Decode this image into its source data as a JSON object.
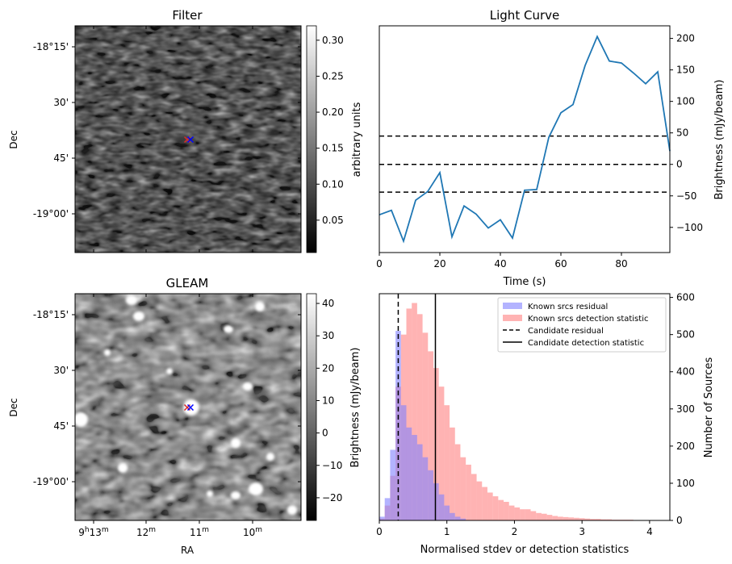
{
  "chart_data": [
    {
      "type": "heatmap",
      "title": "Filter",
      "xlabel": "",
      "ylabel": "Dec",
      "yticklabels": [
        "-18°15'",
        "30'",
        "45'",
        "-19°00'"
      ],
      "colorbar": {
        "label": "arbitrary units",
        "range": [
          0.005,
          0.32
        ],
        "ticks": [
          0.05,
          0.1,
          0.15,
          0.2,
          0.25,
          0.3
        ],
        "ticklabels": [
          "0.05",
          "0.10",
          "0.15",
          "0.20",
          "0.25",
          "0.30"
        ]
      },
      "markers": [
        {
          "symbol": "x",
          "color": "#d62728"
        },
        {
          "symbol": "x",
          "color": "#0000ff"
        }
      ]
    },
    {
      "type": "line",
      "title": "Light Curve",
      "xlabel": "Time (s)",
      "ylabel": "Brightness (mJy/beam)",
      "xlim": [
        0,
        96
      ],
      "ylim": [
        -140,
        220
      ],
      "xticks": [
        0,
        20,
        40,
        60,
        80
      ],
      "yticks": [
        -100,
        -50,
        0,
        50,
        100,
        150,
        200
      ],
      "x": [
        0,
        4,
        8,
        12,
        16,
        20,
        24,
        28,
        32,
        36,
        40,
        44,
        48,
        52,
        56,
        60,
        64,
        68,
        72,
        76,
        80,
        84,
        88,
        92,
        96
      ],
      "y": [
        -80,
        -73,
        -122,
        -57,
        -43,
        -13,
        -115,
        -66,
        -79,
        -101,
        -88,
        -117,
        -41,
        -40,
        43,
        82,
        95,
        157,
        203,
        164,
        161,
        145,
        128,
        147,
        21
      ],
      "color": "#1f77b4",
      "hlines": [
        {
          "y": 45
        },
        {
          "y": 0
        },
        {
          "y": -44
        }
      ]
    },
    {
      "type": "heatmap",
      "title": "GLEAM",
      "xlabel": "RA",
      "ylabel": "Dec",
      "xticklabels": [
        "9h13m",
        "12m",
        "11m",
        "10m"
      ],
      "yticklabels": [
        "-18°15'",
        "30'",
        "45'",
        "-19°00'"
      ],
      "colorbar": {
        "label": "Brightness (mJy/beam)",
        "range": [
          -27,
          43
        ],
        "ticks": [
          -20,
          -10,
          0,
          10,
          20,
          30,
          40
        ],
        "ticklabels": [
          "−20",
          "−10",
          "0",
          "10",
          "20",
          "30",
          "40"
        ]
      },
      "markers": [
        {
          "symbol": "x",
          "color": "#d62728"
        },
        {
          "symbol": "x",
          "color": "#0000ff"
        }
      ]
    },
    {
      "type": "bar",
      "subtype": "histogram",
      "xlabel": "Normalised stdev or detection statistics",
      "ylabel": "Number of Sources",
      "xlim": [
        0,
        4.3
      ],
      "ylim": [
        0,
        610
      ],
      "xticks": [
        0,
        1,
        2,
        3,
        4
      ],
      "yticks": [
        0,
        100,
        200,
        300,
        400,
        500,
        600
      ],
      "bin_width": 0.08,
      "legend": "top-right",
      "series": [
        {
          "name": "Known srcs residual",
          "color": "#8080ff",
          "bin_start": 0.0,
          "values": [
            10,
            60,
            190,
            510,
            310,
            250,
            230,
            205,
            170,
            135,
            100,
            70,
            40,
            20,
            10,
            5
          ]
        },
        {
          "name": "Known srcs detection statistic",
          "color": "#ff8080",
          "bin_start": 0.0,
          "values": [
            5,
            40,
            120,
            360,
            500,
            570,
            585,
            555,
            505,
            455,
            410,
            360,
            310,
            250,
            205,
            170,
            150,
            125,
            105,
            90,
            75,
            65,
            55,
            50,
            40,
            35,
            30,
            30,
            25,
            20,
            18,
            15,
            12,
            10,
            9,
            8,
            7,
            6,
            5,
            4,
            4,
            3,
            3,
            2,
            2,
            2,
            2,
            1,
            1,
            1,
            1,
            1,
            1,
            1
          ]
        }
      ],
      "vlines": [
        {
          "name": "Candidate residual",
          "x": 0.28,
          "style": "dashed"
        },
        {
          "name": "Candidate detection statistic",
          "x": 0.83,
          "style": "solid"
        }
      ]
    }
  ]
}
